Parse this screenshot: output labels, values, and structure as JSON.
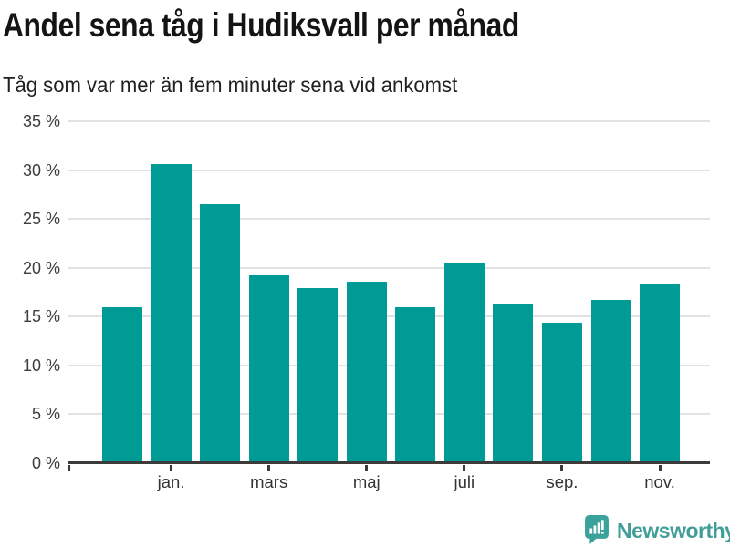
{
  "header": {
    "title": "Andel sena tåg i Hudiksvall per månad",
    "subtitle": "Tåg som var mer än fem minuter sena vid ankomst"
  },
  "chart_data": {
    "type": "bar",
    "categories": [
      "",
      "jan.",
      "",
      "mars",
      "",
      "maj",
      "",
      "juli",
      "",
      "sep.",
      "",
      "nov."
    ],
    "values": [
      16.0,
      30.6,
      26.5,
      19.2,
      17.9,
      18.6,
      16.0,
      20.5,
      16.2,
      14.4,
      16.7,
      18.3
    ],
    "title": "Andel sena tåg i Hudiksvall per månad",
    "subtitle": "Tåg som var mer än fem minuter sena vid ankomst",
    "xlabel": "",
    "ylabel": "",
    "ylim": [
      0,
      35
    ],
    "y_tick_step": 5,
    "y_tick_labels": [
      "0 %",
      "5 %",
      "10 %",
      "15 %",
      "20 %",
      "25 %",
      "30 %",
      "35 %"
    ],
    "x_tick_labels": [
      "jan.",
      "mars",
      "maj",
      "juli",
      "sep.",
      "nov."
    ],
    "grid": "horizontal",
    "legend": "none",
    "bar_color": "#009b94"
  },
  "colors": {
    "bar": "#009b94",
    "grid_line": "#e2e2e2",
    "axis_line": "#3b3b3b",
    "tick_label": "#3d3d3d",
    "title": "#141414",
    "subtitle": "#202020",
    "logo": "#3f9e97"
  },
  "footer": {
    "brand": "Newsworthy"
  },
  "icons": {
    "logo": "bar-chart-speech-bubble-icon"
  }
}
